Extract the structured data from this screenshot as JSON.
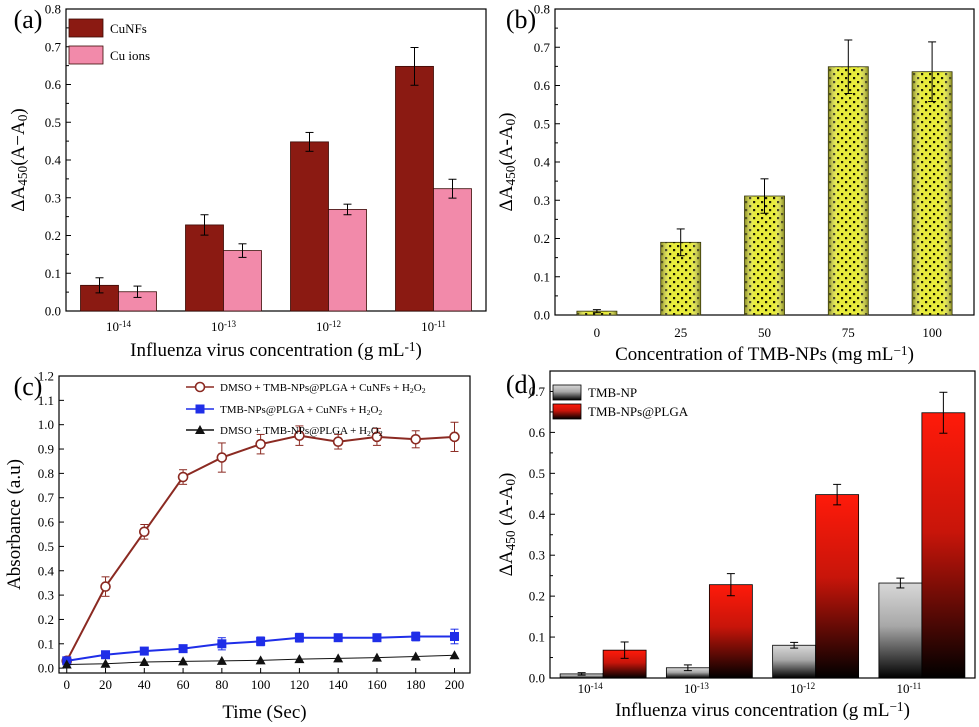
{
  "chart_data": [
    {
      "panel": "(a)",
      "type": "bar",
      "categories": [
        "10^-14",
        "10^-13",
        "10^-12",
        "10^-11"
      ],
      "series": [
        {
          "name": "CuNFs",
          "color": "#8b1a12",
          "values": [
            0.068,
            0.228,
            0.448,
            0.648
          ],
          "errors": [
            0.02,
            0.027,
            0.025,
            0.05
          ]
        },
        {
          "name": "Cu ions",
          "color": "#f28aaa",
          "values": [
            0.051,
            0.16,
            0.269,
            0.324
          ],
          "errors": [
            0.015,
            0.018,
            0.014,
            0.025
          ]
        }
      ],
      "xlabel": "Influenza virus concentration (g mL-1)",
      "ylabel": "ΔA450(A−A0)",
      "ylim": [
        0,
        0.8
      ],
      "yticks": [
        "0.0",
        "0.1",
        "0.2",
        "0.3",
        "0.4",
        "0.5",
        "0.6",
        "0.7",
        "0.8"
      ],
      "legend_position": "top-left"
    },
    {
      "panel": "(b)",
      "type": "bar",
      "categories": [
        "0",
        "25",
        "50",
        "75",
        "100"
      ],
      "series": [
        {
          "color": "#e8ec3c",
          "values": [
            0.01,
            0.19,
            0.311,
            0.649,
            0.636
          ],
          "errors": [
            0.004,
            0.035,
            0.045,
            0.07,
            0.078
          ]
        }
      ],
      "xlabel": "Concentration of TMB-NPs (mg mL−1)",
      "ylabel": "ΔA450(A-A0)",
      "ylim": [
        0,
        0.8
      ],
      "yticks": [
        "0.0",
        "0.1",
        "0.2",
        "0.3",
        "0.4",
        "0.5",
        "0.6",
        "0.7",
        "0.8"
      ]
    },
    {
      "panel": "(c)",
      "type": "line",
      "x": [
        0,
        20,
        40,
        60,
        80,
        100,
        120,
        140,
        160,
        180,
        200
      ],
      "series": [
        {
          "name": "DMSO + TMB-NPs@PLGA + CuNFs + H2O2",
          "color": "#8b2a22",
          "marker": "circle",
          "values": [
            0.03,
            0.335,
            0.56,
            0.785,
            0.865,
            0.92,
            0.955,
            0.93,
            0.95,
            0.94,
            0.95
          ],
          "errors": [
            0.01,
            0.04,
            0.03,
            0.03,
            0.06,
            0.04,
            0.04,
            0.03,
            0.035,
            0.035,
            0.06
          ]
        },
        {
          "name": "TMB-NPs@PLGA + CuNFs + H2O2",
          "color": "#1f2ee8",
          "marker": "square",
          "values": [
            0.03,
            0.055,
            0.07,
            0.08,
            0.1,
            0.11,
            0.125,
            0.125,
            0.125,
            0.13,
            0.13
          ],
          "errors": [
            0.008,
            0.012,
            0.012,
            0.012,
            0.025,
            0.018,
            0.018,
            0.012,
            0.015,
            0.018,
            0.03
          ]
        },
        {
          "name": "DMSO + TMB-NPs@PLGA + H2O2",
          "color": "#111111",
          "marker": "triangle",
          "values": [
            0.015,
            0.018,
            0.025,
            0.028,
            0.03,
            0.032,
            0.037,
            0.04,
            0.043,
            0.048,
            0.053
          ],
          "errors": [
            0,
            0,
            0,
            0,
            0,
            0,
            0,
            0,
            0,
            0,
            0
          ]
        }
      ],
      "xlabel": "Time (Sec)",
      "ylabel": "Absorbance (a.u)",
      "xlim": [
        0,
        200
      ],
      "ylim": [
        -0.02,
        1.2
      ],
      "xticks": [
        "0",
        "20",
        "40",
        "60",
        "80",
        "100",
        "120",
        "140",
        "160",
        "180",
        "200"
      ],
      "yticks": [
        "0.0",
        "0.1",
        "0.2",
        "0.3",
        "0.4",
        "0.5",
        "0.6",
        "0.7",
        "0.8",
        "0.9",
        "1.0",
        "1.1",
        "1.2"
      ],
      "legend_position": "top-center"
    },
    {
      "panel": "(d)",
      "type": "bar",
      "categories": [
        "10^-14",
        "10^-13",
        "10^-12",
        "10^-11"
      ],
      "series": [
        {
          "name": "TMB-NP",
          "color": "#d0d0d0",
          "values": [
            0.01,
            0.025,
            0.08,
            0.232
          ],
          "errors": [
            0.003,
            0.007,
            0.007,
            0.012
          ]
        },
        {
          "name": "TMB-NPs@PLGA",
          "color": "#ff1a0a",
          "values": [
            0.068,
            0.228,
            0.448,
            0.648
          ],
          "errors": [
            0.02,
            0.027,
            0.025,
            0.05
          ]
        }
      ],
      "xlabel": "Influenza virus concentration (g mL−1)",
      "ylabel": "ΔA450 (A-A0)",
      "ylim": [
        0,
        0.75
      ],
      "yticks": [
        "0.0",
        "0.1",
        "0.2",
        "0.3",
        "0.4",
        "0.5",
        "0.6",
        "0.7"
      ],
      "legend_position": "top-left"
    }
  ]
}
